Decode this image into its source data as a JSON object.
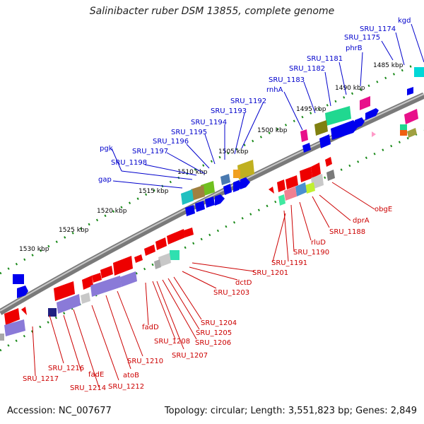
{
  "title": "Salinibacter ruber DSM 13855, complete genome",
  "footer": {
    "accession": "Accession: NC_007677",
    "summary": "Topology: circular; Length: 3,551,823 bp; Genes: 2,849"
  },
  "colors": {
    "forward_label": "#0000cc",
    "reverse_label": "#cc0000",
    "backbone": "#8a8a8a",
    "tick": "#1a8a1a"
  },
  "kbp_markers": [
    "1485 kbp",
    "1490 kbp",
    "1495 kbp",
    "1500 kbp",
    "1505 kbp",
    "1510 kbp",
    "1515 kbp",
    "1520 kbp",
    "1525 kbp",
    "1530 kbp"
  ],
  "forward_genes": [
    "kgd",
    "SRU_1174",
    "SRU_1175",
    "phrB",
    "SRU_1181",
    "SRU_1182",
    "SRU_1183",
    "rnhA",
    "SRU_1192",
    "SRU_1193",
    "SRU_1194",
    "SRU_1195",
    "SRU_1196",
    "SRU_1197",
    "pgk",
    "SRU_1198",
    "gap"
  ],
  "reverse_genes": [
    "obgE",
    "dprA",
    "SRU_1188",
    "rluD",
    "SRU_1190",
    "SRU_1191",
    "SRU_1201",
    "dctD",
    "SRU_1203",
    "SRU_1204",
    "SRU_1205",
    "SRU_1206",
    "SRU_1207",
    "SRU_1208",
    "fadD",
    "SRU_1210",
    "atoB",
    "SRU_1212",
    "SRU_1214",
    "fadE",
    "SRU_1216",
    "SRU_1217"
  ]
}
